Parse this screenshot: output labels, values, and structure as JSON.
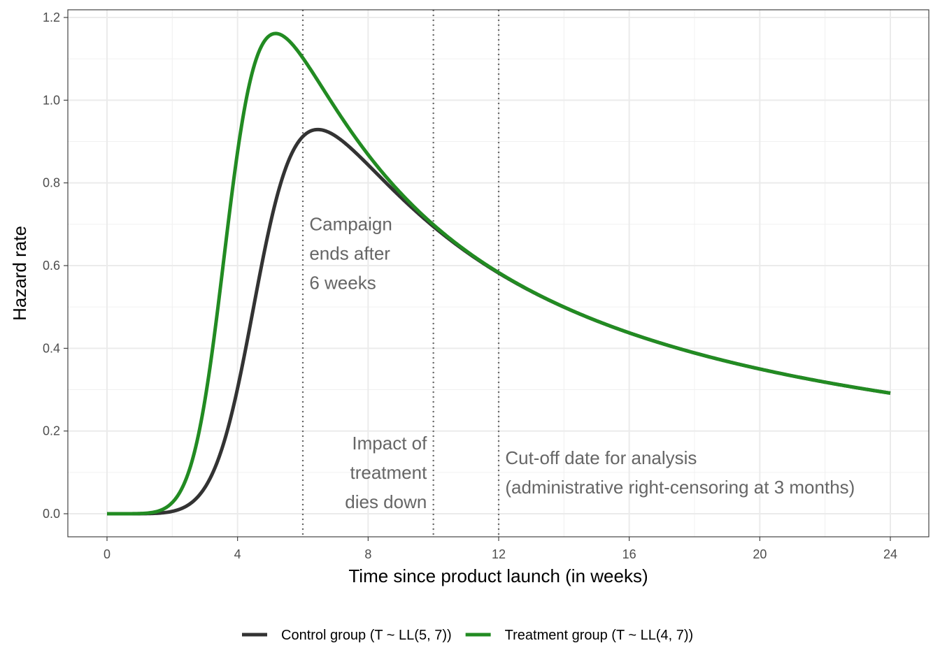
{
  "chart_data": {
    "type": "line",
    "title": "",
    "xlabel": "Time since product launch (in weeks)",
    "ylabel": "Hazard rate",
    "xlim": [
      0,
      24
    ],
    "ylim": [
      0,
      1.2
    ],
    "x_ticks": [
      0,
      4,
      8,
      12,
      16,
      20,
      24
    ],
    "y_ticks": [
      0.0,
      0.2,
      0.4,
      0.6,
      0.8,
      1.0,
      1.2
    ],
    "x_tick_labels": [
      "0",
      "4",
      "8",
      "12",
      "16",
      "20",
      "24"
    ],
    "y_tick_labels": [
      "0.0",
      "0.2",
      "0.4",
      "0.6",
      "0.8",
      "1.0",
      "1.2"
    ],
    "grid": true,
    "legend_position": "bottom",
    "series": [
      {
        "name": "Control group (T ~ LL(5, 7))",
        "color": "#333333",
        "distribution": {
          "family": "log-logistic",
          "scale": 5,
          "shape": 7
        },
        "x": [
          0,
          1,
          2,
          3,
          3.5,
          4,
          4.5,
          5,
          5.5,
          6,
          6.5,
          7,
          7.5,
          8,
          9,
          10,
          11,
          12,
          13,
          14,
          15,
          16,
          17,
          18,
          19,
          20,
          21,
          22,
          23,
          24
        ],
        "values": [
          0,
          0.0002,
          0.0057,
          0.0646,
          0.1708,
          0.3523,
          0.5774,
          0.7736,
          0.8927,
          0.9283,
          0.9281,
          0.9004,
          0.8702,
          0.8326,
          0.7643,
          0.6929,
          0.6338,
          0.5814,
          0.5378,
          0.4998,
          0.4668,
          0.4371,
          0.4125,
          0.39,
          0.3697,
          0.35,
          0.3337,
          0.3185,
          0.3051,
          0.2917
        ]
      },
      {
        "name": "Treatment group (T ~ LL(4, 7))",
        "color": "#228b22",
        "distribution": {
          "family": "log-logistic",
          "scale": 4,
          "shape": 7
        },
        "x": [
          0,
          1,
          1.5,
          2,
          2.5,
          3,
          3.5,
          4,
          4.5,
          5,
          5.2,
          5.5,
          6,
          6.5,
          7,
          7.5,
          8,
          9,
          10,
          11,
          12,
          13,
          14,
          15,
          16,
          17,
          18,
          19,
          20,
          21,
          22,
          23,
          24
        ],
        "values": [
          0,
          0.0011,
          0.0119,
          0.0667,
          0.2358,
          0.5566,
          0.8973,
          1.0989,
          1.1593,
          1.1568,
          1.1601,
          1.1403,
          1.1047,
          1.0393,
          0.9784,
          0.9201,
          0.8638,
          0.7735,
          0.699,
          0.637,
          0.5831,
          0.5386,
          0.5004,
          0.467,
          0.4374,
          0.4126,
          0.39,
          0.3697,
          0.35,
          0.3337,
          0.3185,
          0.3051,
          0.2917
        ]
      }
    ],
    "vlines": [
      {
        "x": 6,
        "style": "dotted"
      },
      {
        "x": 10,
        "style": "dotted"
      },
      {
        "x": 12,
        "style": "dotted"
      }
    ],
    "annotations": [
      {
        "x": 6.2,
        "y": 0.63,
        "anchor": "start",
        "lines": [
          "Campaign",
          "ends after",
          "6 weeks"
        ]
      },
      {
        "x": 9.8,
        "y": 0.1,
        "anchor": "end",
        "lines": [
          "Impact of",
          "treatment",
          "dies down"
        ]
      },
      {
        "x": 12.2,
        "y": 0.1,
        "anchor": "start",
        "lines": [
          "Cut-off date for analysis",
          "(administrative right-censoring at 3 months)"
        ]
      }
    ]
  }
}
